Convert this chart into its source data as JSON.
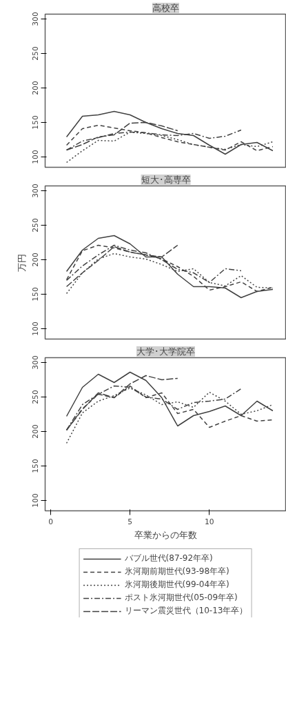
{
  "chart_data": [
    {
      "type": "line",
      "title": "高校卒",
      "xlim": [
        -0.35,
        14.85
      ],
      "xticks": [
        0,
        5,
        10
      ],
      "ylim": [
        85,
        307
      ],
      "yticks": [
        100,
        150,
        200,
        250,
        300
      ],
      "tick_labels": "y",
      "x": [
        1,
        2,
        3,
        4,
        5,
        6,
        7,
        8,
        9,
        10,
        11,
        12,
        13,
        14
      ],
      "series": [
        {
          "color": "#404040",
          "line_style": "solid",
          "values": [
            129,
            159,
            161,
            166,
            161,
            150,
            141,
            134,
            131,
            117,
            104,
            118,
            121,
            109
          ]
        },
        {
          "color": "#404040",
          "line_style": "dashed",
          "values": [
            117,
            141,
            146,
            142,
            138,
            135,
            128,
            122,
            118,
            114,
            110,
            122,
            109,
            115
          ]
        },
        {
          "color": "#404040",
          "line_style": "dotted",
          "values": [
            92,
            109,
            124,
            123,
            136,
            134,
            131,
            125,
            118,
            114,
            111,
            118,
            115,
            122
          ]
        },
        {
          "color": "#404040",
          "line_style": "dashdot",
          "values": [
            110,
            123,
            128,
            134,
            136,
            135,
            132,
            131,
            134,
            127,
            130,
            139,
            null,
            null
          ]
        },
        {
          "color": "#404040",
          "line_style": "longdash",
          "values": [
            110,
            118,
            129,
            132,
            149,
            150,
            145,
            138,
            null,
            null,
            null,
            null,
            null,
            null
          ]
        }
      ]
    },
    {
      "type": "line",
      "title": "短大･高専卒",
      "ylabel": "万円",
      "xlim": [
        -0.35,
        14.85
      ],
      "xticks": [
        0,
        5,
        10
      ],
      "ylim": [
        85,
        307
      ],
      "yticks": [
        100,
        150,
        200,
        250,
        300
      ],
      "tick_labels": "y",
      "x": [
        1,
        2,
        3,
        4,
        5,
        6,
        7,
        8,
        9,
        10,
        11,
        12,
        13,
        14
      ],
      "series": [
        {
          "color": "#404040",
          "line_style": "solid",
          "values": [
            183,
            214,
            231,
            235,
            223,
            204,
            204,
            179,
            161,
            161,
            159,
            145,
            154,
            157
          ]
        },
        {
          "color": "#404040",
          "line_style": "dashed",
          "values": [
            171,
            213,
            221,
            217,
            211,
            207,
            201,
            190,
            176,
            156,
            161,
            168,
            154,
            160
          ]
        },
        {
          "color": "#404040",
          "line_style": "dotted",
          "values": [
            151,
            181,
            201,
            209,
            204,
            201,
            193,
            183,
            187,
            167,
            162,
            177,
            160,
            159
          ]
        },
        {
          "color": "#404040",
          "line_style": "dashdot",
          "values": [
            170,
            191,
            207,
            221,
            214,
            210,
            200,
            186,
            181,
            167,
            187,
            184,
            null,
            null
          ]
        },
        {
          "color": "#404040",
          "line_style": "longdash",
          "values": [
            161,
            181,
            199,
            219,
            211,
            207,
            204,
            221,
            null,
            null,
            null,
            null,
            null,
            null
          ]
        }
      ]
    },
    {
      "type": "line",
      "title": "大学･大学院卒",
      "xlabel": "卒業からの年数",
      "xlim": [
        -0.35,
        14.85
      ],
      "xticks": [
        0,
        5,
        10
      ],
      "ylim": [
        85,
        307
      ],
      "yticks": [
        100,
        150,
        200,
        250,
        300
      ],
      "legend": "bottom",
      "x": [
        1,
        2,
        3,
        4,
        5,
        6,
        7,
        8,
        9,
        10,
        11,
        12,
        13,
        14
      ],
      "series": [
        {
          "name": "バブル世代(87-92年卒)",
          "color": "#404040",
          "line_style": "solid",
          "values": [
            222,
            264,
            283,
            271,
            286,
            274,
            249,
            208,
            223,
            229,
            237,
            223,
            244,
            230
          ]
        },
        {
          "name": "氷河期前期世代(93-98年卒)",
          "color": "#404040",
          "line_style": "dashed",
          "values": [
            202,
            233,
            254,
            249,
            266,
            249,
            256,
            226,
            232,
            206,
            215,
            223,
            215,
            217
          ]
        },
        {
          "name": "氷河期後期世代(99-04年卒)",
          "color": "#404040",
          "line_style": "dotted",
          "values": [
            183,
            227,
            244,
            252,
            263,
            253,
            239,
            243,
            235,
            257,
            244,
            225,
            230,
            239
          ]
        },
        {
          "name": "ポスト氷河期世代(05-09年卒)",
          "color": "#404040",
          "line_style": "dashdot",
          "values": [
            202,
            239,
            254,
            266,
            264,
            250,
            247,
            232,
            242,
            244,
            247,
            262,
            null,
            null
          ]
        },
        {
          "name": "リーマン震災世代（10-13年卒）",
          "color": "#404040",
          "line_style": "longdash",
          "values": [
            202,
            232,
            256,
            249,
            269,
            281,
            275,
            277,
            null,
            null,
            null,
            null,
            null,
            null
          ]
        }
      ]
    }
  ]
}
